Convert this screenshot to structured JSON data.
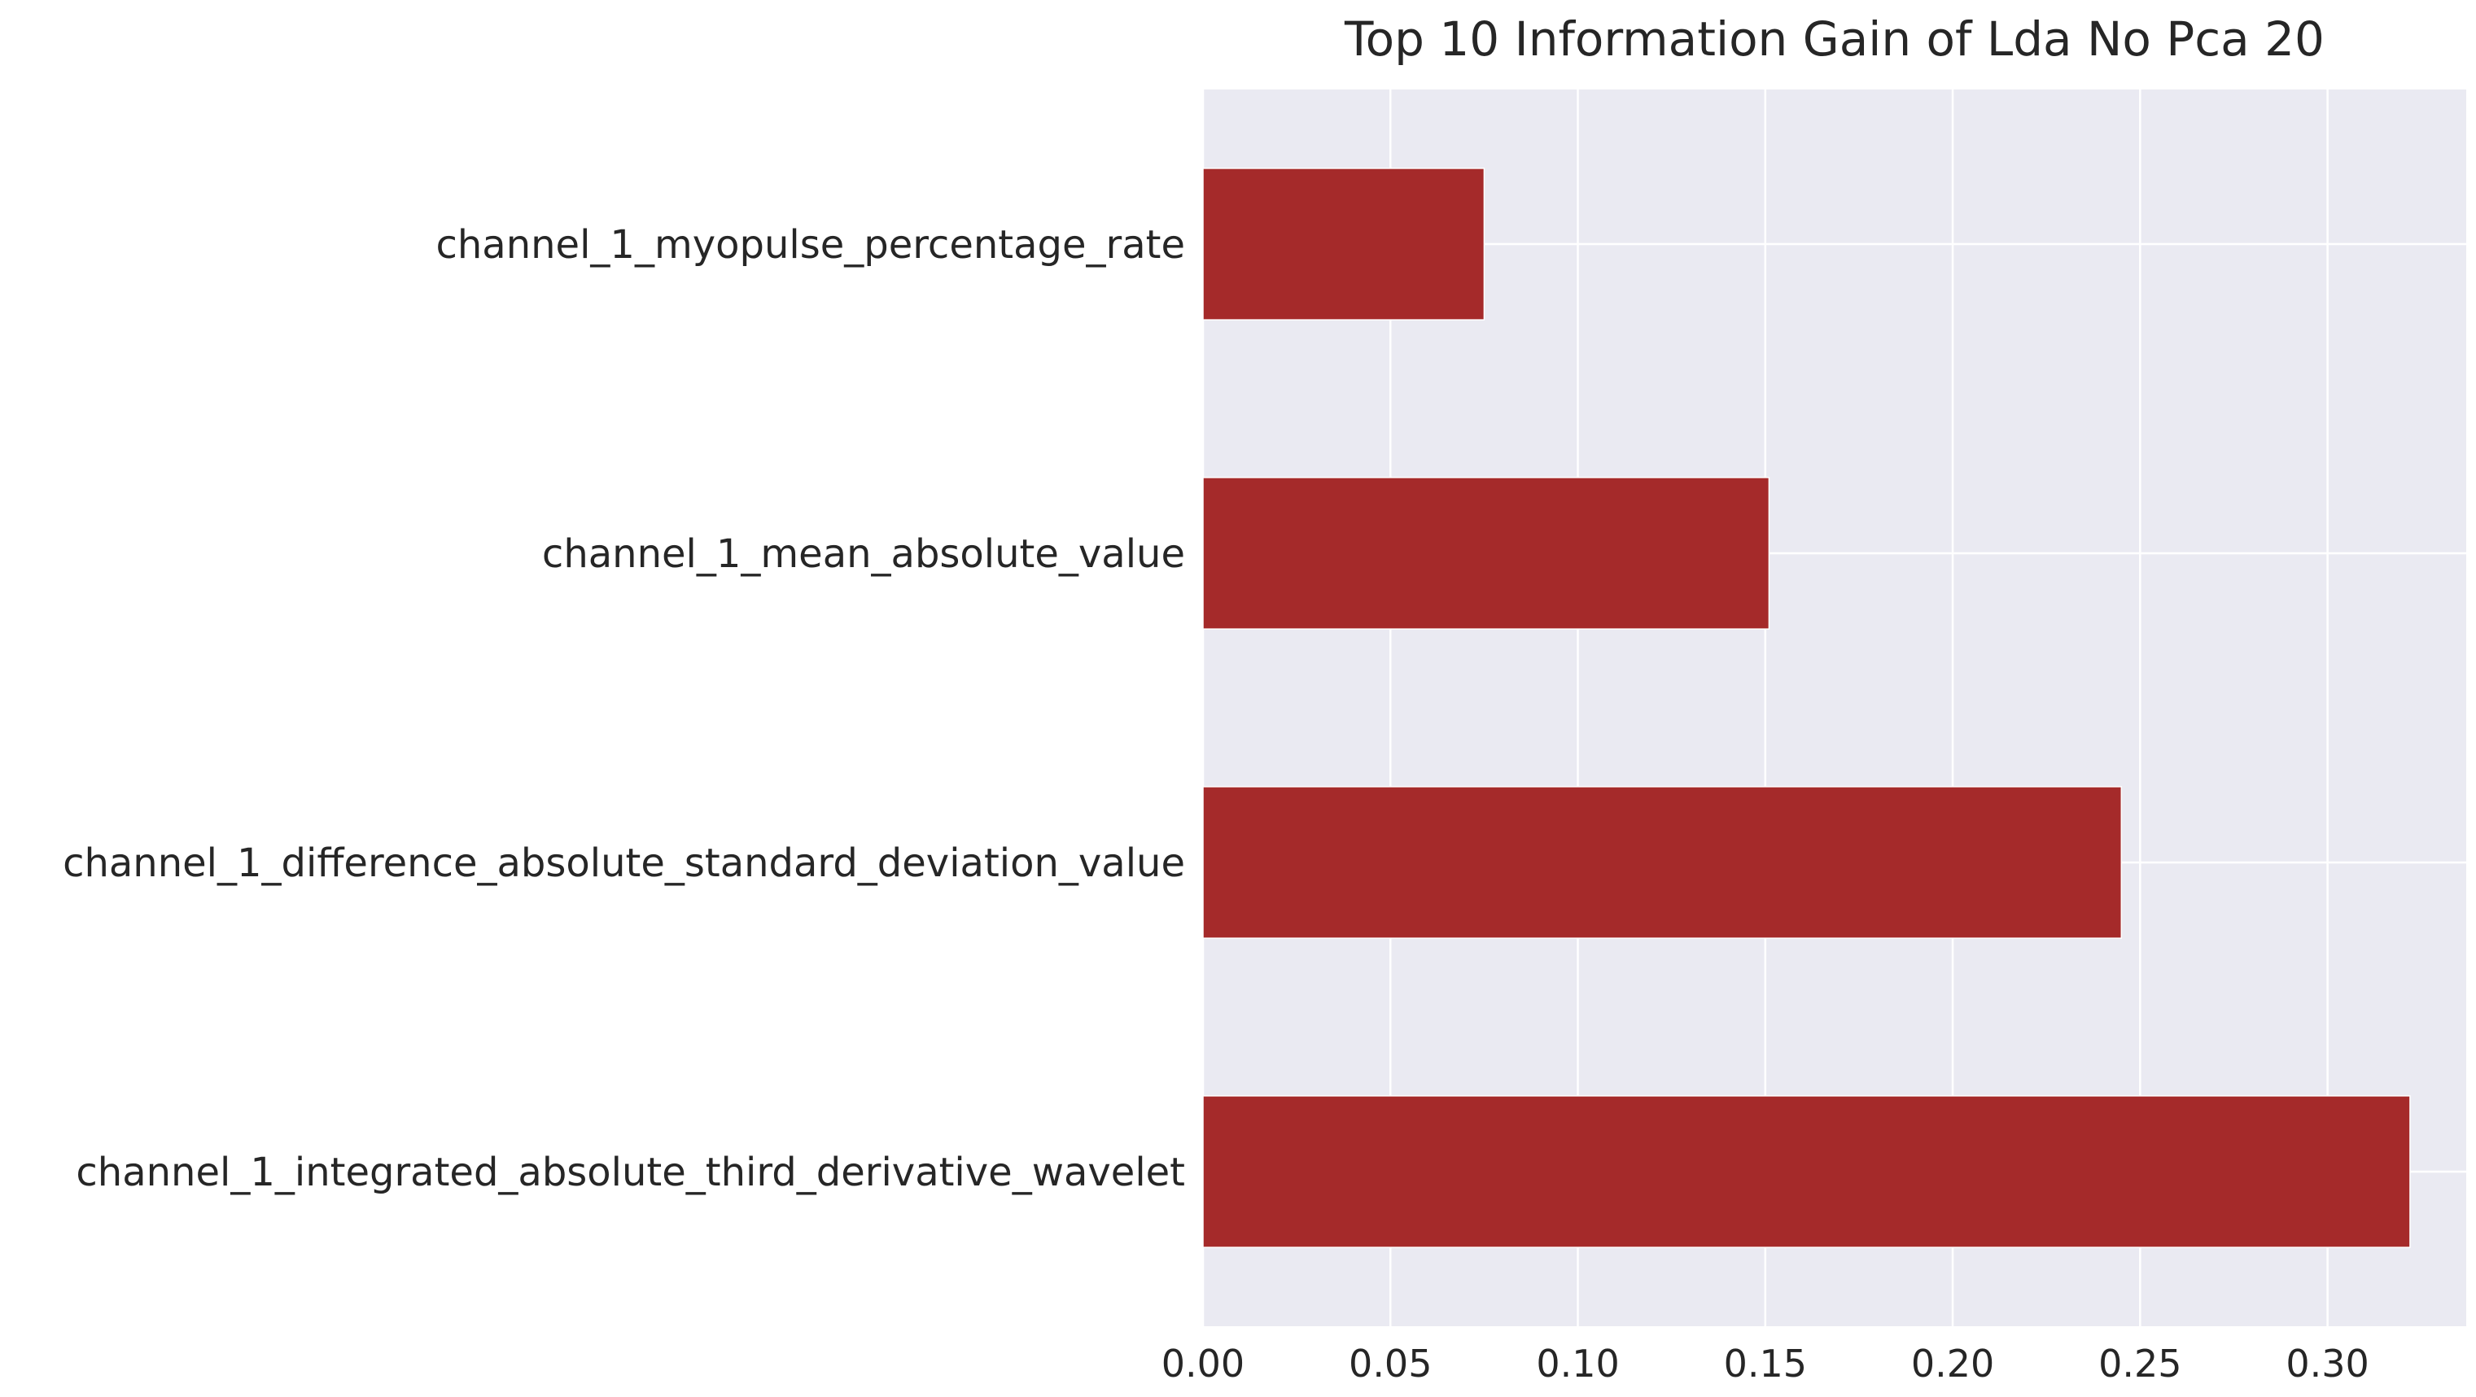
{
  "chart_data": {
    "type": "bar",
    "orientation": "horizontal",
    "title": "Top 10 Information Gain of Lda No Pca 20",
    "xlabel": "",
    "ylabel": "",
    "categories": [
      "channel_1_myopulse_percentage_rate",
      "channel_1_mean_absolute_value",
      "channel_1_difference_absolute_standard_deviation_value",
      "channel_1_integrated_absolute_third_derivative_wavelet"
    ],
    "values": [
      0.075,
      0.151,
      0.245,
      0.322
    ],
    "xlim": [
      0,
      0.337
    ],
    "xticks": [
      0.0,
      0.05,
      0.1,
      0.15,
      0.2,
      0.25,
      0.3
    ],
    "xtick_labels": [
      "0.00",
      "0.05",
      "0.10",
      "0.15",
      "0.20",
      "0.25",
      "0.30"
    ],
    "grid": true,
    "bar_color": "#a52a2a",
    "background_color": "#eaeaf2"
  }
}
